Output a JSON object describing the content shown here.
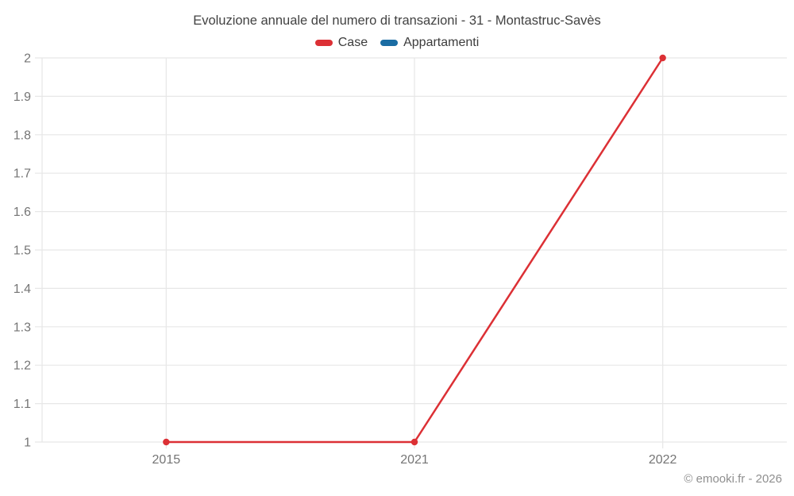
{
  "footer": {
    "copyright": "© emooki.fr - 2026"
  },
  "chart_data": {
    "type": "line",
    "title": "Evoluzione annuale del numero di transazioni - 31 - Montastruc-Savès",
    "categories": [
      "2015",
      "2021",
      "2022"
    ],
    "series": [
      {
        "name": "Case",
        "color": "#dc3035",
        "values": [
          1,
          1,
          2
        ]
      },
      {
        "name": "Appartamenti",
        "color": "#1a6ca3",
        "values": []
      }
    ],
    "ylim": [
      1,
      2
    ],
    "y_ticks": [
      "2",
      "1.9",
      "1.8",
      "1.7",
      "1.6",
      "1.5",
      "1.4",
      "1.3",
      "1.2",
      "1.1",
      "1"
    ],
    "grid": true,
    "legend_position": "top",
    "axis_color": "#e7e7e7",
    "tick_label_color": "#757575",
    "line_width": 2.5,
    "point_radius": 4.2
  }
}
